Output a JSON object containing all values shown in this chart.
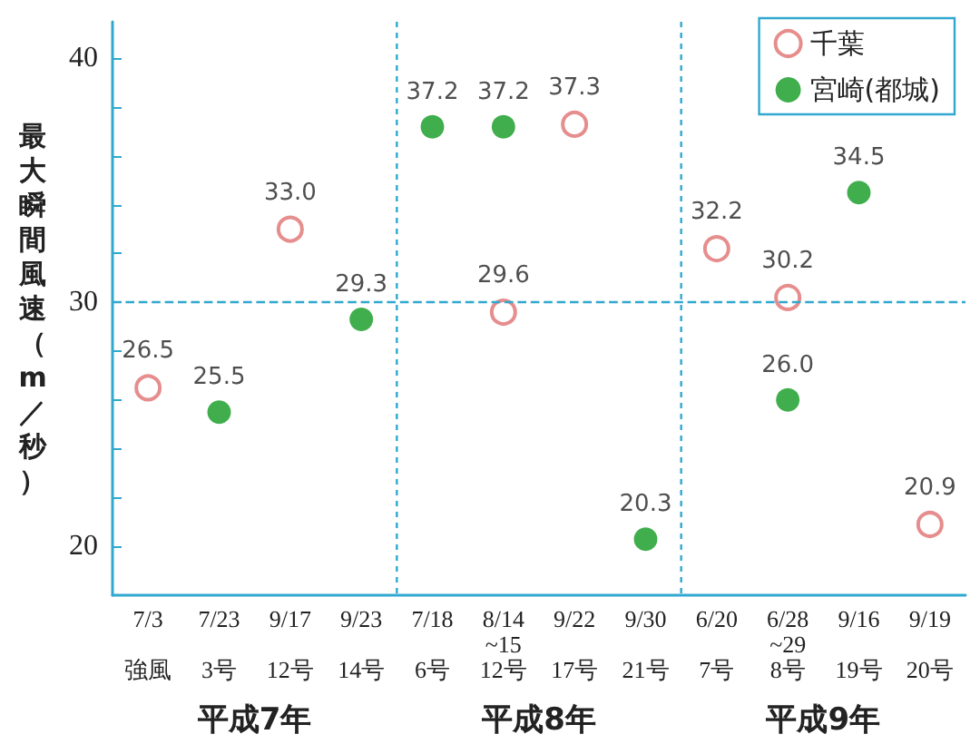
{
  "chart_data": {
    "type": "scatter",
    "ylabel": "最大瞬間風速（m／秒）",
    "categories": [
      "7/3\n\n強風",
      "7/23\n\n3号",
      "9/17\n\n12号",
      "9/23\n\n14号",
      "7/18\n\n6号",
      "8/14\n~15\n12号",
      "9/22\n\n17号",
      "9/30\n\n21号",
      "6/20\n\n7号",
      "6/28\n~29\n8号",
      "9/16\n\n19号",
      "9/19\n\n20号"
    ],
    "series": [
      {
        "name": "千葉",
        "color": "#e07070",
        "marker": "circle",
        "values": [
          26.5,
          null,
          33.0,
          null,
          null,
          29.6,
          37.3,
          null,
          32.2,
          30.2,
          null,
          20.9
        ],
        "value_labels": [
          "26.5",
          null,
          "33.0",
          null,
          null,
          "29.6",
          "37.3",
          null,
          "32.2",
          "30.2",
          null,
          "20.9"
        ]
      },
      {
        "name": "宮崎(都城)",
        "color": "#109a20",
        "marker": "circle",
        "values": [
          null,
          25.5,
          null,
          29.3,
          37.2,
          37.2,
          null,
          20.3,
          null,
          26.0,
          34.5,
          null
        ],
        "value_labels": [
          null,
          "25.5",
          null,
          "29.3",
          "37.2",
          "37.2",
          null,
          "20.3",
          null,
          "26.0",
          "34.5",
          null
        ]
      }
    ],
    "ylim": [
      18,
      41.5
    ],
    "yticks": [
      20,
      {
        "value": 22,
        "label": null
      },
      {
        "value": 24,
        "label": null
      },
      {
        "value": 26,
        "label": null
      },
      {
        "value": 28,
        "label": null
      },
      30,
      {
        "value": 32,
        "label": null
      },
      {
        "value": 34,
        "label": null
      },
      {
        "value": 36,
        "label": null
      },
      {
        "value": 38,
        "label": null
      },
      40
    ],
    "ref_lines": [
      {
        "axis": "y",
        "value": 30,
        "label": null,
        "color": "#30a8d0",
        "line_style": "dashed"
      }
    ],
    "annotations": [
      "平成7年",
      "平成8年",
      "平成9年"
    ],
    "grid": false,
    "legend": "top right"
  }
}
